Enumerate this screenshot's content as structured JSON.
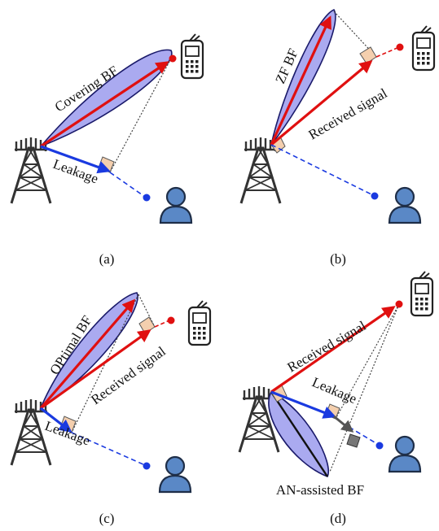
{
  "panels": [
    {
      "caption": "(a)",
      "beam_label": "Covering BF",
      "signal_label": "",
      "leakage_label": "Leakage"
    },
    {
      "caption": "(b)",
      "beam_label": "ZF BF",
      "signal_label": "Received signal",
      "leakage_label": ""
    },
    {
      "caption": "(c)",
      "beam_label": "OPtimal BF",
      "signal_label": "Received signal",
      "leakage_label": "Leakage"
    },
    {
      "caption": "(d)",
      "beam_label": "AN-assisted BF",
      "signal_label": "Received signal",
      "leakage_label": "Leakage"
    }
  ],
  "colors": {
    "beam_fill": "#aaaaf0",
    "beam_edge": "#1a1a6a",
    "signal_arrow": "#e01010",
    "leakage_arrow": "#1a3ae0",
    "right_angle_fill": "#f4cfae",
    "tower": "#333333",
    "user_body": "#5a88c6",
    "user_dot": "#1a3ae0",
    "receiver_dot": "#e01010",
    "an_box": "#777777"
  },
  "icons": {
    "base_station": "tower-icon",
    "legit_receiver": "phone-icon",
    "eavesdropper": "user-icon"
  }
}
